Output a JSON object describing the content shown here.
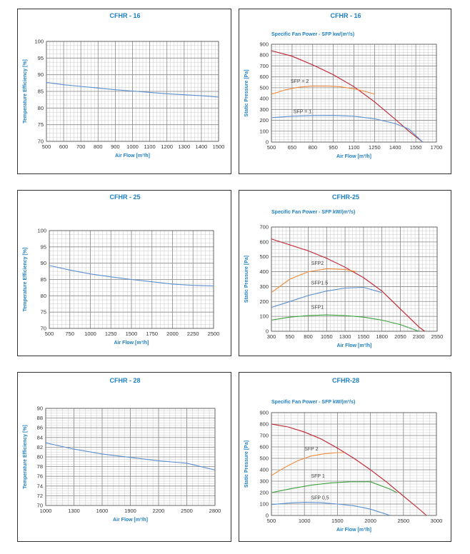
{
  "charts": [
    {
      "id": "cfhr16-eff",
      "title": "CFHR - 16",
      "subtitle": "",
      "chart_data": {
        "type": "line",
        "title": "CFHR - 16",
        "xlabel": "Air Flow [m³/h]",
        "ylabel": "Temperature Efficiency [%]",
        "xlim": [
          500,
          1500
        ],
        "ylim": [
          70,
          100
        ],
        "xticks": [
          500,
          600,
          700,
          800,
          900,
          1000,
          1100,
          1200,
          1300,
          1400,
          1500
        ],
        "yticks": [
          70,
          75,
          80,
          85,
          90,
          95,
          100
        ],
        "grid": true,
        "series": [
          {
            "name": "",
            "color": "#5b8fd0",
            "x": [
              500,
              600,
              700,
              800,
              900,
              1000,
              1100,
              1200,
              1300,
              1400,
              1500
            ],
            "y": [
              87.7,
              87.0,
              86.5,
              86.0,
              85.5,
              85.1,
              84.7,
              84.3,
              84.0,
              83.7,
              83.3
            ]
          }
        ]
      }
    },
    {
      "id": "cfhr16-sfp",
      "title": "CFHR - 16",
      "subtitle": "Specific Fan Power - SFP kw/(m³/s)",
      "chart_data": {
        "type": "line",
        "title": "CFHR - 16",
        "subtitle": "Specific Fan Power - SFP kw/(m³/s)",
        "xlabel": "Air Flow [m³/h]",
        "ylabel": "Static Pressure [Pa]",
        "xlim": [
          500,
          1700
        ],
        "ylim": [
          0,
          900
        ],
        "xticks": [
          500,
          650,
          800,
          950,
          1100,
          1250,
          1400,
          1550,
          1700
        ],
        "yticks": [
          0,
          100,
          200,
          300,
          400,
          500,
          600,
          700,
          800,
          900
        ],
        "grid": true,
        "series": [
          {
            "name": "",
            "color": "#c0202e",
            "x": [
              500,
              650,
              800,
              950,
              1100,
              1250,
              1400,
              1500,
              1600
            ],
            "y": [
              840,
              790,
              710,
              620,
              510,
              370,
              210,
              100,
              0
            ]
          },
          {
            "name": "SFP = 2",
            "color": "#f08a3a",
            "x": [
              500,
              600,
              700,
              800,
              900,
              1000,
              1100,
              1200,
              1250
            ],
            "y": [
              440,
              480,
              505,
              515,
              515,
              510,
              490,
              460,
              440
            ]
          },
          {
            "name": "SFP = 1",
            "color": "#5b8fd0",
            "x": [
              500,
              650,
              800,
              950,
              1100,
              1250,
              1400,
              1500,
              1600
            ],
            "y": [
              225,
              238,
              244,
              245,
              238,
              215,
              170,
              120,
              0
            ]
          }
        ],
        "annotations": [
          {
            "text": "SFP = 2",
            "x": 640,
            "y": 545
          },
          {
            "text": "SFP = 1",
            "x": 660,
            "y": 265
          }
        ]
      }
    },
    {
      "id": "cfhr25-eff",
      "title": "CFHR - 25",
      "subtitle": "",
      "chart_data": {
        "type": "line",
        "title": "CFHR - 25",
        "xlabel": "Air Flow [m³/h]",
        "ylabel": "Temperature Efficiency [%]",
        "xlim": [
          500,
          2500
        ],
        "ylim": [
          70,
          100
        ],
        "xticks": [
          500,
          750,
          1000,
          1250,
          1500,
          1750,
          2000,
          2250,
          2500
        ],
        "yticks": [
          70,
          75,
          80,
          85,
          90,
          95,
          100
        ],
        "grid": true,
        "series": [
          {
            "name": "",
            "color": "#5b8fd0",
            "x": [
              500,
              750,
              1000,
              1250,
              1500,
              1750,
              2000,
              2250,
              2500
            ],
            "y": [
              89.3,
              87.9,
              86.7,
              85.8,
              85.0,
              84.3,
              83.6,
              83.2,
              83.0
            ]
          }
        ]
      }
    },
    {
      "id": "cfhr25-sfp",
      "title": "CFHR-25",
      "subtitle": "Specific Fan Power - SFP kW/(m³/s)",
      "chart_data": {
        "type": "line",
        "title": "CFHR-25",
        "subtitle": "Specific Fan Power - SFP kW/(m³/s)",
        "xlabel": "Air Flow [m³/h]",
        "ylabel": "Static Pressure [Pa]",
        "xlim": [
          300,
          2550
        ],
        "ylim": [
          0,
          700
        ],
        "xticks": [
          300,
          550,
          800,
          1050,
          1300,
          1550,
          1800,
          2050,
          2300,
          2550
        ],
        "yticks": [
          0,
          100,
          200,
          300,
          400,
          500,
          600,
          700
        ],
        "grid": true,
        "series": [
          {
            "name": "",
            "color": "#c0202e",
            "x": [
              300,
              550,
              800,
              1050,
              1300,
              1550,
              1800,
              2050,
              2300,
              2380
            ],
            "y": [
              620,
              580,
              540,
              490,
              430,
              360,
              270,
              150,
              30,
              0
            ]
          },
          {
            "name": "SFP2",
            "color": "#f08a3a",
            "x": [
              300,
              550,
              800,
              1050,
              1300,
              1450
            ],
            "y": [
              260,
              350,
              400,
              420,
              415,
              400
            ]
          },
          {
            "name": "SFP1.5",
            "color": "#5b8fd0",
            "x": [
              300,
              550,
              800,
              1050,
              1300,
              1550,
              1800
            ],
            "y": [
              160,
              200,
              240,
              270,
              290,
              295,
              260
            ]
          },
          {
            "name": "SFP1",
            "color": "#3da13d",
            "x": [
              300,
              550,
              800,
              1050,
              1300,
              1550,
              1800,
              2050,
              2300
            ],
            "y": [
              75,
              95,
              105,
              110,
              105,
              95,
              75,
              45,
              0
            ]
          }
        ],
        "annotations": [
          {
            "text": "SFP2",
            "x": 840,
            "y": 445
          },
          {
            "text": "SFP1.5",
            "x": 840,
            "y": 315
          },
          {
            "text": "SFP1",
            "x": 840,
            "y": 150
          }
        ]
      }
    },
    {
      "id": "cfhr28-eff",
      "title": "CFHR - 28",
      "subtitle": "",
      "chart_data": {
        "type": "line",
        "title": "CFHR - 28",
        "xlabel": "Air Flow [m³/h]",
        "ylabel": "Temperature Efficiency [%]",
        "xlim": [
          1000,
          2800
        ],
        "ylim": [
          70,
          90
        ],
        "xticks": [
          1000,
          1300,
          1600,
          1900,
          2200,
          2500,
          2800
        ],
        "yticks": [
          70,
          72,
          74,
          76,
          78,
          80,
          82,
          84,
          86,
          88,
          90
        ],
        "grid": true,
        "series": [
          {
            "name": "",
            "color": "#5b8fd0",
            "x": [
              1000,
              1300,
              1600,
              1900,
              2200,
              2500,
              2800
            ],
            "y": [
              82.9,
              81.6,
              80.6,
              79.9,
              79.2,
              78.7,
              77.3
            ]
          }
        ]
      }
    },
    {
      "id": "cfhr28-sfp",
      "title": "CFHR-28",
      "subtitle": "Specific Fan Power - SFP kW/(m³/s)",
      "chart_data": {
        "type": "line",
        "title": "CFHR-28",
        "subtitle": "Specific Fan Power - SFP kW/(m³/s)",
        "xlabel": "Air Flow [m³/h]",
        "ylabel": "Static Pressure [Pa]",
        "xlim": [
          500,
          3000
        ],
        "ylim": [
          0,
          900
        ],
        "xticks": [
          500,
          1000,
          1500,
          2000,
          2500,
          3000
        ],
        "yticks": [
          0,
          100,
          200,
          300,
          400,
          500,
          600,
          700,
          800,
          900
        ],
        "grid": true,
        "series": [
          {
            "name": "",
            "color": "#c0202e",
            "x": [
              500,
              750,
              1000,
              1250,
              1500,
              1750,
              2000,
              2250,
              2500,
              2750,
              2850
            ],
            "y": [
              800,
              775,
              730,
              670,
              590,
              500,
              400,
              290,
              170,
              50,
              0
            ]
          },
          {
            "name": "SFP 2",
            "color": "#f08a3a",
            "x": [
              500,
              700,
              900,
              1100,
              1300,
              1500,
              1600
            ],
            "y": [
              350,
              420,
              480,
              520,
              540,
              550,
              550
            ]
          },
          {
            "name": "SFP 1",
            "color": "#3da13d",
            "x": [
              500,
              800,
              1100,
              1400,
              1700,
              2000,
              2300,
              2400
            ],
            "y": [
              200,
              235,
              265,
              285,
              295,
              295,
              230,
              200
            ]
          },
          {
            "name": "SFP 0,5",
            "color": "#5b8fd0",
            "x": [
              500,
              750,
              1000,
              1250,
              1500,
              1750,
              2000,
              2300
            ],
            "y": [
              95,
              108,
              115,
              112,
              100,
              85,
              55,
              0
            ]
          }
        ],
        "annotations": [
          {
            "text": "SFP 2",
            "x": 1000,
            "y": 570
          },
          {
            "text": "SFP 1",
            "x": 1100,
            "y": 330
          },
          {
            "text": "SFP 0,5",
            "x": 1100,
            "y": 140
          }
        ]
      }
    }
  ]
}
